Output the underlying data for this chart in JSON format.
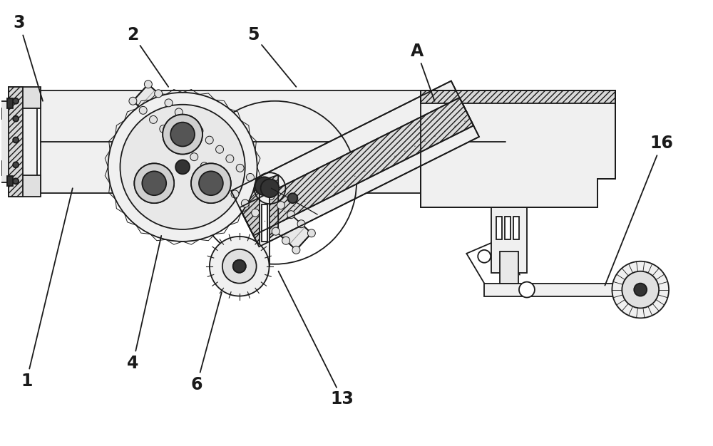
{
  "bg_color": "#ffffff",
  "line_color": "#1a1a1a",
  "figsize": [
    10.0,
    6.26
  ],
  "dpi": 100,
  "label_fs": 17,
  "lw": 1.3
}
